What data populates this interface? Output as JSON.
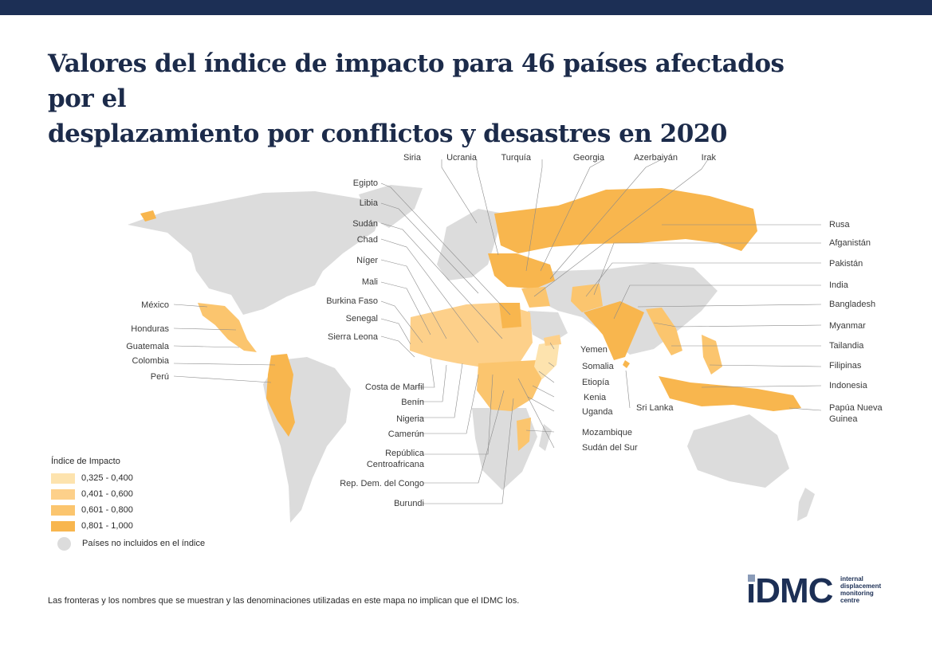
{
  "title": {
    "line1": "Valores del índice de impacto para 46 países afectados por el",
    "line2": "desplazamiento por conflictos y desastres en 2020"
  },
  "colors": {
    "band1": "#fde3ae",
    "band2": "#fdd08a",
    "band3": "#fbc56e",
    "band4": "#f8b64e",
    "not_included": "#dcdcdc",
    "header_bar": "#1c2f55"
  },
  "country_labels": {
    "top": [
      "Siria",
      "Ucrania",
      "Turquía",
      "Georgia",
      "Azerbaiyán",
      "Irak"
    ],
    "left": [
      "Egipto",
      "Libia",
      "Sudán",
      "Chad",
      "Níger",
      "Mali",
      "Burkina Faso",
      "Senegal",
      "Sierra Leona"
    ],
    "americas": [
      "México",
      "Honduras",
      "Guatemala",
      "Colombia",
      "Perú"
    ],
    "right": [
      "Rusa",
      "Afganistán",
      "Pakistán",
      "India",
      "Bangladesh",
      "Myanmar",
      "Tailandia",
      "Filipinas",
      "Indonesia",
      "Papúa Nueva",
      "Guinea"
    ],
    "africa_bottom_left": [
      "Costa de Marfil",
      "Benín",
      "Nigeria",
      "Camerún",
      "República",
      "Centroafricana",
      "Rep. Dem. del Congo",
      "Burundi"
    ],
    "africa_bottom_right": [
      "Yemen",
      "Somalia",
      "Etiopía",
      "Kenia",
      "Uganda",
      "Mozambique",
      "Sudán del Sur"
    ],
    "asia_mid": [
      "Sri Lanka"
    ]
  },
  "legend": {
    "title": "Índice de Impacto",
    "items": [
      {
        "label": "0,325 - 0,400",
        "color": "#fde3ae"
      },
      {
        "label": "0,401 - 0,600",
        "color": "#fdd08a"
      },
      {
        "label": "0,601 - 0,800",
        "color": "#fbc56e"
      },
      {
        "label": "0,801 - 1,000",
        "color": "#f8b64e"
      }
    ],
    "not_included": "Países no incluidos en el índice"
  },
  "footnote": "Las fronteras y los nombres que se muestran y las denominaciones utilizadas en este mapa no implican que el IDMC los.",
  "logo": {
    "mark": "iDMC",
    "line1": "internal",
    "line2": "displacement",
    "line3": "monitoring",
    "line4": "centre"
  }
}
